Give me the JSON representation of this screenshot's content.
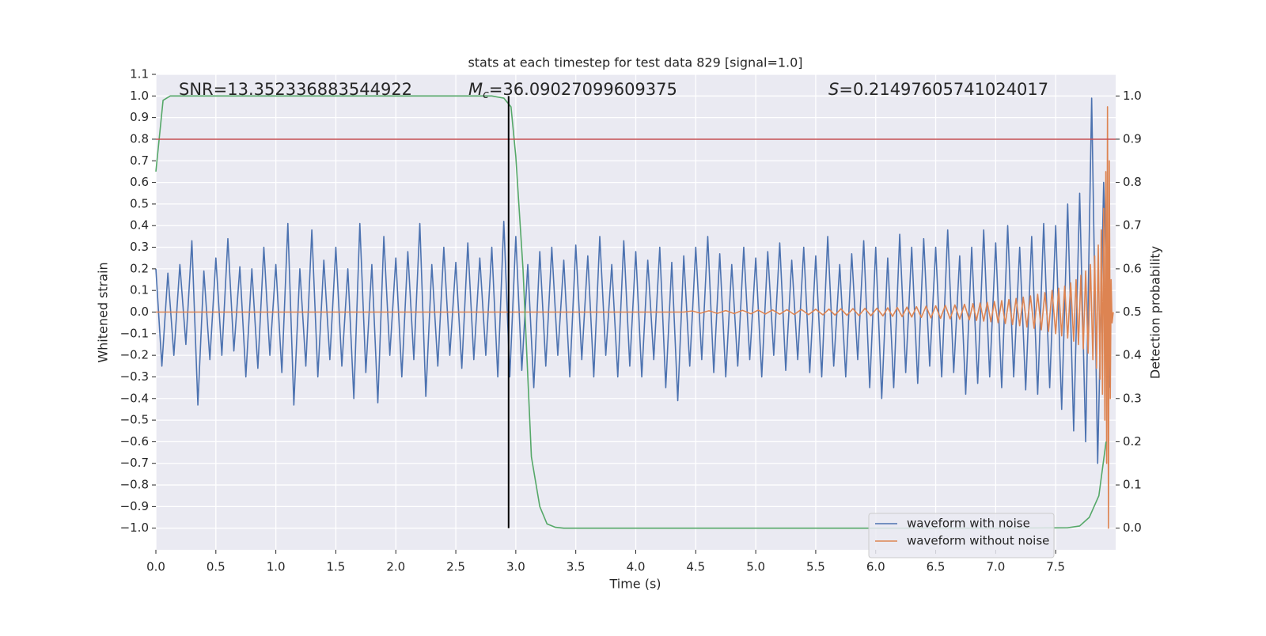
{
  "chart_data": {
    "type": "line",
    "title": "stats at each timestep for test data 829 [signal=1.0]",
    "xlabel": "Time (s)",
    "ylabel": "Whitened strain",
    "y2label": "Detection probability",
    "xlim": [
      0,
      8
    ],
    "ylim": [
      -1.1,
      1.1
    ],
    "y2lim": [
      -0.05,
      1.05
    ],
    "grid": true,
    "legend": "lower right",
    "xticks": [
      {
        "value": 0,
        "label": "0.0"
      },
      {
        "value": 0.5,
        "label": "0.5"
      },
      {
        "value": 1,
        "label": "1.0"
      },
      {
        "value": 1.5,
        "label": "1.5"
      },
      {
        "value": 2,
        "label": "2.0"
      },
      {
        "value": 2.5,
        "label": "2.5"
      },
      {
        "value": 3,
        "label": "3.0"
      },
      {
        "value": 3.5,
        "label": "3.5"
      },
      {
        "value": 4,
        "label": "4.0"
      },
      {
        "value": 4.5,
        "label": "4.5"
      },
      {
        "value": 5,
        "label": "5.0"
      },
      {
        "value": 5.5,
        "label": "5.5"
      },
      {
        "value": 6,
        "label": "6.0"
      },
      {
        "value": 6.5,
        "label": "6.5"
      },
      {
        "value": 7,
        "label": "7.0"
      },
      {
        "value": 7.5,
        "label": "7.5"
      }
    ],
    "yticks": [
      {
        "value": -1,
        "label": "−1.0"
      },
      {
        "value": -0.9,
        "label": "−0.9"
      },
      {
        "value": -0.8,
        "label": "−0.8"
      },
      {
        "value": -0.7,
        "label": "−0.7"
      },
      {
        "value": -0.6,
        "label": "−0.6"
      },
      {
        "value": -0.5,
        "label": "−0.5"
      },
      {
        "value": -0.4,
        "label": "−0.4"
      },
      {
        "value": -0.3,
        "label": "−0.3"
      },
      {
        "value": -0.2,
        "label": "−0.2"
      },
      {
        "value": -0.1,
        "label": "−0.1"
      },
      {
        "value": 0,
        "label": "0.0"
      },
      {
        "value": 0.1,
        "label": "0.1"
      },
      {
        "value": 0.2,
        "label": "0.2"
      },
      {
        "value": 0.3,
        "label": "0.3"
      },
      {
        "value": 0.4,
        "label": "0.4"
      },
      {
        "value": 0.5,
        "label": "0.5"
      },
      {
        "value": 0.6,
        "label": "0.6"
      },
      {
        "value": 0.7,
        "label": "0.7"
      },
      {
        "value": 0.8,
        "label": "0.8"
      },
      {
        "value": 0.9,
        "label": "0.9"
      },
      {
        "value": 1,
        "label": "1.0"
      },
      {
        "value": 1.1,
        "label": "1.1"
      }
    ],
    "y2ticks": [
      {
        "value": 0,
        "label": "0.0"
      },
      {
        "value": 0.1,
        "label": "0.1"
      },
      {
        "value": 0.2,
        "label": "0.2"
      },
      {
        "value": 0.3,
        "label": "0.3"
      },
      {
        "value": 0.4,
        "label": "0.4"
      },
      {
        "value": 0.5,
        "label": "0.5"
      },
      {
        "value": 0.6,
        "label": "0.6"
      },
      {
        "value": 0.7,
        "label": "0.7"
      },
      {
        "value": 0.8,
        "label": "0.8"
      },
      {
        "value": 0.9,
        "label": "0.9"
      },
      {
        "value": 1,
        "label": "1.0"
      }
    ],
    "annotations": [
      {
        "text": "SNR=13.352336883544922"
      },
      {
        "symbol": "M",
        "subscript": "c",
        "text": "=36.09027099609375"
      },
      {
        "symbol": "S",
        "text": "=0.21497605741024017"
      }
    ],
    "hline": {
      "y": 0.8,
      "color": "#c44e52"
    },
    "vline": {
      "x": 2.94,
      "ymin": 0,
      "ymax": 1,
      "axis": "y2",
      "color": "#000000"
    },
    "series": [
      {
        "name": "waveform with noise",
        "color": "#4c72b0",
        "x": [
          0,
          0.05,
          0.1,
          0.15,
          0.2,
          0.25,
          0.3,
          0.35,
          0.4,
          0.45,
          0.5,
          0.55,
          0.6,
          0.65,
          0.7,
          0.75,
          0.8,
          0.85,
          0.9,
          0.95,
          1,
          1.05,
          1.1,
          1.15,
          1.2,
          1.25,
          1.3,
          1.35,
          1.4,
          1.45,
          1.5,
          1.55,
          1.6,
          1.65,
          1.7,
          1.75,
          1.8,
          1.85,
          1.9,
          1.95,
          2,
          2.05,
          2.1,
          2.15,
          2.2,
          2.25,
          2.3,
          2.35,
          2.4,
          2.45,
          2.5,
          2.55,
          2.6,
          2.65,
          2.7,
          2.75,
          2.8,
          2.85,
          2.9,
          2.95,
          3,
          3.05,
          3.1,
          3.15,
          3.2,
          3.25,
          3.3,
          3.35,
          3.4,
          3.45,
          3.5,
          3.55,
          3.6,
          3.65,
          3.7,
          3.75,
          3.8,
          3.85,
          3.9,
          3.95,
          4,
          4.05,
          4.1,
          4.15,
          4.2,
          4.25,
          4.3,
          4.35,
          4.4,
          4.45,
          4.5,
          4.55,
          4.6,
          4.65,
          4.7,
          4.75,
          4.8,
          4.85,
          4.9,
          4.95,
          5,
          5.05,
          5.1,
          5.15,
          5.2,
          5.25,
          5.3,
          5.35,
          5.4,
          5.45,
          5.5,
          5.55,
          5.6,
          5.65,
          5.7,
          5.75,
          5.8,
          5.85,
          5.9,
          5.95,
          6,
          6.05,
          6.1,
          6.15,
          6.2,
          6.25,
          6.3,
          6.35,
          6.4,
          6.45,
          6.5,
          6.55,
          6.6,
          6.65,
          6.7,
          6.75,
          6.8,
          6.85,
          6.9,
          6.95,
          7,
          7.05,
          7.1,
          7.15,
          7.2,
          7.25,
          7.3,
          7.35,
          7.4,
          7.45,
          7.5,
          7.55,
          7.6,
          7.65,
          7.7,
          7.75,
          7.8,
          7.85,
          7.9,
          7.95
        ],
        "values": [
          0.2,
          -0.25,
          0.18,
          -0.2,
          0.22,
          -0.15,
          0.33,
          -0.43,
          0.19,
          -0.22,
          0.25,
          -0.2,
          0.34,
          -0.18,
          0.21,
          -0.3,
          0.2,
          -0.26,
          0.3,
          -0.2,
          0.22,
          -0.28,
          0.41,
          -0.43,
          0.2,
          -0.25,
          0.38,
          -0.3,
          0.24,
          -0.22,
          0.3,
          -0.25,
          0.2,
          -0.4,
          0.41,
          -0.28,
          0.22,
          -0.42,
          0.35,
          -0.2,
          0.25,
          -0.3,
          0.28,
          -0.22,
          0.41,
          -0.39,
          0.22,
          -0.25,
          0.3,
          -0.2,
          0.23,
          -0.26,
          0.32,
          -0.22,
          0.25,
          -0.2,
          0.3,
          -0.3,
          0.42,
          -0.3,
          0.35,
          -0.27,
          0.22,
          -0.35,
          0.28,
          -0.25,
          0.3,
          -0.2,
          0.24,
          -0.3,
          0.31,
          -0.22,
          0.26,
          -0.3,
          0.35,
          -0.2,
          0.22,
          -0.3,
          0.33,
          -0.25,
          0.28,
          -0.3,
          0.24,
          -0.22,
          0.3,
          -0.35,
          0.23,
          -0.41,
          0.26,
          -0.25,
          0.3,
          -0.22,
          0.35,
          -0.28,
          0.27,
          -0.3,
          0.22,
          -0.25,
          0.3,
          -0.22,
          0.25,
          -0.3,
          0.28,
          -0.2,
          0.32,
          -0.27,
          0.24,
          -0.22,
          0.3,
          -0.28,
          0.26,
          -0.3,
          0.35,
          -0.25,
          0.22,
          -0.3,
          0.27,
          -0.22,
          0.33,
          -0.35,
          0.3,
          -0.4,
          0.25,
          -0.35,
          0.36,
          -0.28,
          0.3,
          -0.33,
          0.34,
          -0.25,
          0.3,
          -0.3,
          0.38,
          -0.28,
          0.26,
          -0.38,
          0.3,
          -0.33,
          0.38,
          -0.3,
          0.32,
          -0.35,
          0.4,
          -0.3,
          0.3,
          -0.36,
          0.35,
          -0.38,
          0.41,
          -0.35,
          0.4,
          -0.45,
          0.5,
          -0.55,
          0.55,
          -0.6,
          0.99,
          -0.7,
          0.6,
          -0.35
        ]
      },
      {
        "name": "waveform without noise",
        "color": "#dd8452",
        "x": [
          0,
          4.4,
          4.47,
          4.54,
          4.61,
          4.68,
          4.75,
          4.82,
          4.89,
          4.96,
          5.02,
          5.08,
          5.14,
          5.2,
          5.26,
          5.32,
          5.38,
          5.44,
          5.5,
          5.56,
          5.61,
          5.66,
          5.71,
          5.76,
          5.81,
          5.86,
          5.91,
          5.96,
          6.01,
          6.06,
          6.1,
          6.14,
          6.18,
          6.22,
          6.26,
          6.3,
          6.34,
          6.38,
          6.42,
          6.46,
          6.5,
          6.54,
          6.58,
          6.62,
          6.66,
          6.7,
          6.74,
          6.78,
          6.81,
          6.84,
          6.87,
          6.9,
          6.93,
          6.96,
          6.99,
          7.02,
          7.05,
          7.08,
          7.11,
          7.14,
          7.17,
          7.2,
          7.23,
          7.26,
          7.29,
          7.32,
          7.35,
          7.38,
          7.41,
          7.44,
          7.47,
          7.5,
          7.525,
          7.55,
          7.575,
          7.6,
          7.625,
          7.65,
          7.67,
          7.69,
          7.71,
          7.73,
          7.75,
          7.77,
          7.79,
          7.81,
          7.825,
          7.84,
          7.855,
          7.87,
          7.88,
          7.89,
          7.9,
          7.91,
          7.918,
          7.925,
          7.932,
          7.94,
          7.947,
          7.955,
          7.962,
          7.97,
          7.98
        ],
        "values": [
          0,
          0,
          0.005,
          -0.005,
          0.006,
          -0.006,
          0.007,
          -0.007,
          0.008,
          -0.008,
          0.009,
          -0.009,
          0.01,
          -0.01,
          0.011,
          -0.011,
          0.012,
          -0.012,
          0.013,
          -0.013,
          0.014,
          -0.014,
          0.015,
          -0.015,
          0.016,
          -0.016,
          0.017,
          -0.017,
          0.018,
          -0.018,
          0.02,
          -0.02,
          0.021,
          -0.021,
          0.023,
          -0.023,
          0.025,
          -0.025,
          0.027,
          -0.027,
          0.029,
          -0.029,
          0.031,
          -0.031,
          0.033,
          -0.033,
          0.036,
          -0.036,
          0.039,
          -0.039,
          0.042,
          -0.042,
          0.045,
          -0.045,
          0.049,
          -0.049,
          0.053,
          -0.053,
          0.058,
          -0.058,
          0.063,
          -0.063,
          0.069,
          -0.069,
          0.075,
          -0.075,
          0.082,
          -0.082,
          0.09,
          -0.09,
          0.1,
          -0.1,
          0.11,
          -0.11,
          0.12,
          -0.12,
          0.135,
          -0.135,
          0.15,
          -0.15,
          0.17,
          -0.17,
          0.19,
          -0.19,
          0.22,
          -0.22,
          0.26,
          -0.26,
          0.31,
          -0.31,
          0.38,
          -0.38,
          0.48,
          -0.5,
          0.65,
          -0.7,
          0.95,
          -1.0,
          0.7,
          -0.4,
          0.15,
          -0.05,
          0
        ]
      },
      {
        "color": "#55a868",
        "axis": "y2",
        "x": [
          0,
          0.06,
          0.12,
          0.5,
          1,
          1.5,
          2,
          2.5,
          2.8,
          2.9,
          2.96,
          3,
          3.06,
          3.13,
          3.2,
          3.26,
          3.33,
          3.4,
          4,
          5,
          6,
          7,
          7.6,
          7.7,
          7.78,
          7.86,
          7.92
        ],
        "values": [
          0.825,
          0.99,
          1,
          1,
          1,
          1,
          1,
          1,
          1,
          0.995,
          0.975,
          0.86,
          0.6,
          0.165,
          0.05,
          0.01,
          0.002,
          0,
          0,
          0,
          0,
          0,
          0.001,
          0.005,
          0.025,
          0.075,
          0.2
        ]
      }
    ]
  }
}
